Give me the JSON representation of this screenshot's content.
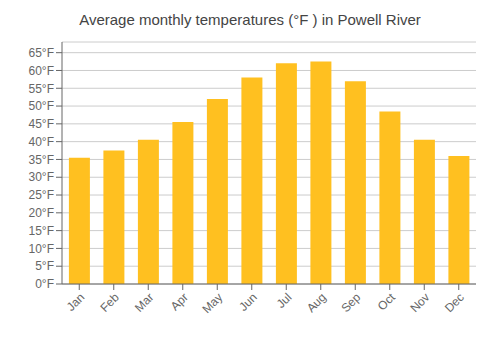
{
  "chart_data": {
    "type": "bar",
    "title": "Average monthly temperatures (°F ) in Powell River",
    "categories": [
      "Jan",
      "Feb",
      "Mar",
      "Apr",
      "May",
      "Jun",
      "Jul",
      "Aug",
      "Sep",
      "Oct",
      "Nov",
      "Dec"
    ],
    "values": [
      35.5,
      37.5,
      40.5,
      45.5,
      52.0,
      58.0,
      62.0,
      62.5,
      57.0,
      48.5,
      40.5,
      36.0
    ],
    "color": "#FFC020",
    "ylim": [
      0,
      68
    ],
    "yticks": [
      {
        "value": 0,
        "label": "0°F"
      },
      {
        "value": 5,
        "label": "5°F"
      },
      {
        "value": 10,
        "label": "10°F"
      },
      {
        "value": 15,
        "label": "15°F"
      },
      {
        "value": 20,
        "label": "20°F"
      },
      {
        "value": 25,
        "label": "25°F"
      },
      {
        "value": 30,
        "label": "30°F"
      },
      {
        "value": 35,
        "label": "35°F"
      },
      {
        "value": 40,
        "label": "40°F"
      },
      {
        "value": 45,
        "label": "45°F"
      },
      {
        "value": 50,
        "label": "50°F"
      },
      {
        "value": 55,
        "label": "55°F"
      },
      {
        "value": 60,
        "label": "60°F"
      },
      {
        "value": 65,
        "label": "65°F"
      }
    ],
    "grid": true
  }
}
